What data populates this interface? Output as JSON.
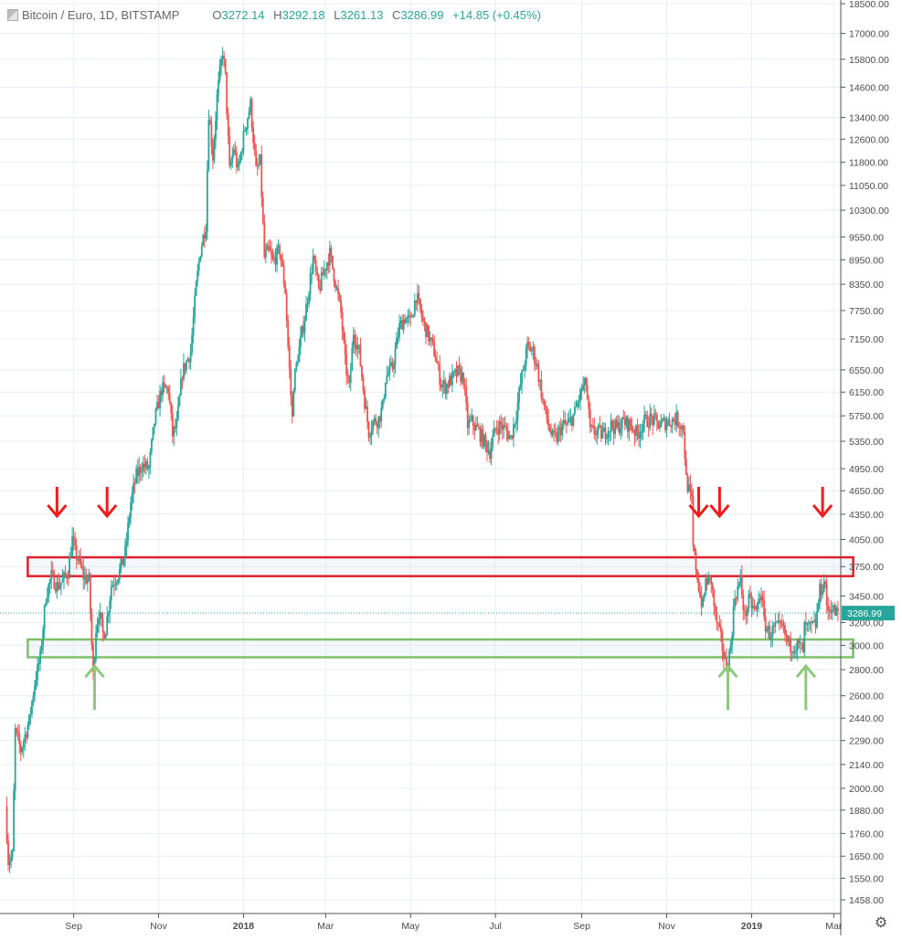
{
  "header": {
    "title": "Bitcoin / Euro, 1D, BITSTAMP",
    "open_label": "O",
    "open": "3272.14",
    "high_label": "H",
    "high": "3292.18",
    "low_label": "L",
    "low": "3261.13",
    "close_label": "C",
    "close": "3286.99",
    "change": "+14.85 (+0.45%)"
  },
  "last_price_label": "3286.99",
  "colors": {
    "up": "#26a69a",
    "down": "#ef5350",
    "grid": "#e8eef3",
    "resistance": "#e0212b",
    "support": "#7fbf6a",
    "axis_text": "#4a4a4a",
    "last_price": "#26a69a"
  },
  "chart_data": {
    "type": "candlestick",
    "title": "Bitcoin / Euro, 1D, BITSTAMP",
    "xlabel": "",
    "ylabel": "",
    "y_scale": "log",
    "y_ticks": [
      18500,
      17000,
      15800,
      14600,
      13400,
      12600,
      11800,
      11050,
      10300,
      9550,
      8950,
      8350,
      7750,
      7150,
      6550,
      6150,
      5750,
      5350,
      4950,
      4650,
      4350,
      4050,
      3750,
      3450,
      3200,
      3000,
      2800,
      2600,
      2440,
      2290,
      2140,
      2000,
      1880,
      1760,
      1650,
      1550,
      1458
    ],
    "y_tick_labels": [
      "18500.00",
      "17000.00",
      "15800.00",
      "14600.00",
      "13400.00",
      "12600.00",
      "11800.00",
      "11050.00",
      "10300.00",
      "9550.00",
      "8950.00",
      "8350.00",
      "7750.00",
      "7150.00",
      "6550.00",
      "6150.00",
      "5750.00",
      "5350.00",
      "4950.00",
      "4650.00",
      "4350.00",
      "4050.00",
      "3750.00",
      "3450.00",
      "3200.00",
      "3000.00",
      "2800.00",
      "2600.00",
      "2440.00",
      "2290.00",
      "2140.00",
      "2000.00",
      "1880.00",
      "1760.00",
      "1650.00",
      "1550.00",
      "1458.00"
    ],
    "x_range": [
      "2017-07-14",
      "2019-03-10"
    ],
    "x_ticks": [
      {
        "date": "2017-09-01",
        "label": "Sep",
        "bold": false
      },
      {
        "date": "2017-11-01",
        "label": "Nov",
        "bold": false
      },
      {
        "date": "2018-01-01",
        "label": "2018",
        "bold": true
      },
      {
        "date": "2018-03-01",
        "label": "Mar",
        "bold": false
      },
      {
        "date": "2018-05-01",
        "label": "May",
        "bold": false
      },
      {
        "date": "2018-07-01",
        "label": "Jul",
        "bold": false
      },
      {
        "date": "2018-09-01",
        "label": "Sep",
        "bold": false
      },
      {
        "date": "2018-11-01",
        "label": "Nov",
        "bold": false
      },
      {
        "date": "2019-01-01",
        "label": "2019",
        "bold": true
      },
      {
        "date": "2019-03-01",
        "label": "Mar",
        "bold": false
      }
    ],
    "price_path": [
      [
        "2017-07-14",
        1900
      ],
      [
        "2017-07-16",
        1630
      ],
      [
        "2017-07-19",
        1650
      ],
      [
        "2017-07-21",
        2350
      ],
      [
        "2017-07-25",
        2230
      ],
      [
        "2017-07-31",
        2420
      ],
      [
        "2017-08-04",
        2700
      ],
      [
        "2017-08-08",
        2900
      ],
      [
        "2017-08-12",
        3450
      ],
      [
        "2017-08-16",
        3650
      ],
      [
        "2017-08-20",
        3550
      ],
      [
        "2017-08-24",
        3600
      ],
      [
        "2017-08-28",
        3700
      ],
      [
        "2017-08-31",
        4050
      ],
      [
        "2017-09-02",
        3900
      ],
      [
        "2017-09-05",
        3800
      ],
      [
        "2017-09-08",
        3650
      ],
      [
        "2017-09-12",
        3600
      ],
      [
        "2017-09-14",
        3000
      ],
      [
        "2017-09-15",
        2750
      ],
      [
        "2017-09-17",
        3150
      ],
      [
        "2017-09-19",
        3300
      ],
      [
        "2017-09-22",
        3100
      ],
      [
        "2017-09-24",
        3150
      ],
      [
        "2017-09-28",
        3550
      ],
      [
        "2017-10-04",
        3700
      ],
      [
        "2017-10-08",
        3900
      ],
      [
        "2017-10-12",
        4500
      ],
      [
        "2017-10-16",
        4850
      ],
      [
        "2017-10-20",
        5000
      ],
      [
        "2017-10-25",
        4950
      ],
      [
        "2017-10-29",
        5650
      ],
      [
        "2017-11-03",
        6200
      ],
      [
        "2017-11-08",
        6200
      ],
      [
        "2017-11-11",
        5450
      ],
      [
        "2017-11-14",
        5600
      ],
      [
        "2017-11-18",
        6500
      ],
      [
        "2017-11-24",
        6900
      ],
      [
        "2017-11-28",
        8300
      ],
      [
        "2017-12-01",
        9200
      ],
      [
        "2017-12-05",
        9900
      ],
      [
        "2017-12-07",
        13600
      ],
      [
        "2017-12-10",
        12000
      ],
      [
        "2017-12-13",
        14200
      ],
      [
        "2017-12-17",
        16200
      ],
      [
        "2017-12-19",
        15000
      ],
      [
        "2017-12-22",
        11500
      ],
      [
        "2017-12-25",
        12300
      ],
      [
        "2017-12-28",
        11500
      ],
      [
        "2018-01-02",
        13000
      ],
      [
        "2018-01-06",
        13900
      ],
      [
        "2018-01-10",
        11500
      ],
      [
        "2018-01-13",
        11800
      ],
      [
        "2018-01-16",
        9000
      ],
      [
        "2018-01-19",
        9200
      ],
      [
        "2018-01-22",
        8900
      ],
      [
        "2018-01-27",
        9200
      ],
      [
        "2018-01-31",
        8200
      ],
      [
        "2018-02-02",
        7000
      ],
      [
        "2018-02-05",
        5700
      ],
      [
        "2018-02-06",
        6300
      ],
      [
        "2018-02-09",
        6800
      ],
      [
        "2018-02-14",
        7600
      ],
      [
        "2018-02-20",
        9000
      ],
      [
        "2018-02-24",
        8200
      ],
      [
        "2018-02-28",
        8700
      ],
      [
        "2018-03-04",
        9100
      ],
      [
        "2018-03-08",
        8400
      ],
      [
        "2018-03-12",
        7700
      ],
      [
        "2018-03-15",
        6700
      ],
      [
        "2018-03-18",
        6200
      ],
      [
        "2018-03-21",
        7300
      ],
      [
        "2018-03-25",
        6900
      ],
      [
        "2018-03-29",
        6000
      ],
      [
        "2018-04-01",
        5500
      ],
      [
        "2018-04-04",
        5650
      ],
      [
        "2018-04-08",
        5700
      ],
      [
        "2018-04-11",
        5900
      ],
      [
        "2018-04-13",
        6400
      ],
      [
        "2018-04-18",
        6600
      ],
      [
        "2018-04-23",
        7400
      ],
      [
        "2018-04-27",
        7600
      ],
      [
        "2018-05-01",
        7500
      ],
      [
        "2018-05-05",
        8100
      ],
      [
        "2018-05-10",
        7500
      ],
      [
        "2018-05-14",
        7200
      ],
      [
        "2018-05-18",
        6900
      ],
      [
        "2018-05-23",
        6300
      ],
      [
        "2018-05-26",
        6250
      ],
      [
        "2018-05-31",
        6400
      ],
      [
        "2018-06-04",
        6500
      ],
      [
        "2018-06-08",
        6400
      ],
      [
        "2018-06-11",
        5600
      ],
      [
        "2018-06-14",
        5650
      ],
      [
        "2018-06-19",
        5500
      ],
      [
        "2018-06-24",
        5300
      ],
      [
        "2018-06-27",
        5200
      ],
      [
        "2018-07-01",
        5550
      ],
      [
        "2018-07-05",
        5600
      ],
      [
        "2018-07-09",
        5500
      ],
      [
        "2018-07-12",
        5400
      ],
      [
        "2018-07-16",
        5800
      ],
      [
        "2018-07-19",
        6300
      ],
      [
        "2018-07-24",
        7000
      ],
      [
        "2018-07-28",
        6900
      ],
      [
        "2018-07-31",
        6600
      ],
      [
        "2018-08-04",
        6000
      ],
      [
        "2018-08-08",
        5600
      ],
      [
        "2018-08-11",
        5400
      ],
      [
        "2018-08-14",
        5400
      ],
      [
        "2018-08-18",
        5600
      ],
      [
        "2018-08-22",
        5600
      ],
      [
        "2018-08-27",
        5800
      ],
      [
        "2018-09-01",
        6200
      ],
      [
        "2018-09-04",
        6300
      ],
      [
        "2018-09-07",
        5500
      ],
      [
        "2018-09-12",
        5500
      ],
      [
        "2018-09-16",
        5450
      ],
      [
        "2018-09-22",
        5600
      ],
      [
        "2018-09-26",
        5550
      ],
      [
        "2018-10-01",
        5650
      ],
      [
        "2018-10-06",
        5600
      ],
      [
        "2018-10-11",
        5450
      ],
      [
        "2018-10-15",
        5650
      ],
      [
        "2018-10-21",
        5700
      ],
      [
        "2018-10-27",
        5600
      ],
      [
        "2018-11-01",
        5650
      ],
      [
        "2018-11-08",
        5700
      ],
      [
        "2018-11-13",
        5550
      ],
      [
        "2018-11-15",
        4800
      ],
      [
        "2018-11-19",
        4500
      ],
      [
        "2018-11-20",
        3950
      ],
      [
        "2018-11-22",
        3750
      ],
      [
        "2018-11-25",
        3450
      ],
      [
        "2018-11-27",
        3350
      ],
      [
        "2018-11-29",
        3600
      ],
      [
        "2018-12-03",
        3600
      ],
      [
        "2018-12-06",
        3250
      ],
      [
        "2018-12-10",
        3050
      ],
      [
        "2018-12-13",
        2850
      ],
      [
        "2018-12-15",
        2850
      ],
      [
        "2018-12-17",
        3000
      ],
      [
        "2018-12-19",
        3300
      ],
      [
        "2018-12-20",
        3450
      ],
      [
        "2018-12-24",
        3600
      ],
      [
        "2018-12-27",
        3250
      ],
      [
        "2018-12-30",
        3400
      ],
      [
        "2019-01-04",
        3300
      ],
      [
        "2019-01-08",
        3500
      ],
      [
        "2019-01-10",
        3200
      ],
      [
        "2019-01-14",
        3100
      ],
      [
        "2019-01-18",
        3150
      ],
      [
        "2019-01-23",
        3150
      ],
      [
        "2019-01-28",
        3000
      ],
      [
        "2019-02-01",
        3000
      ],
      [
        "2019-02-05",
        2990
      ],
      [
        "2019-02-07",
        2950
      ],
      [
        "2019-02-08",
        3150
      ],
      [
        "2019-02-12",
        3150
      ],
      [
        "2019-02-16",
        3180
      ],
      [
        "2019-02-19",
        3500
      ],
      [
        "2019-02-23",
        3600
      ],
      [
        "2019-02-24",
        3300
      ],
      [
        "2019-02-27",
        3350
      ],
      [
        "2019-03-02",
        3290
      ],
      [
        "2019-03-04",
        3287
      ]
    ],
    "resistance_zone": {
      "x_start": "2017-07-30",
      "x_end": "2019-03-15",
      "y_low": 3650,
      "y_high": 3850,
      "label": ""
    },
    "support_zone": {
      "x_start": "2017-07-30",
      "x_end": "2019-03-15",
      "y_low": 2900,
      "y_high": 3050,
      "label": ""
    },
    "down_arrows": [
      {
        "date": "2017-08-20",
        "price": 4350
      },
      {
        "date": "2017-09-25",
        "price": 4350
      },
      {
        "date": "2018-11-24",
        "price": 4350
      },
      {
        "date": "2018-12-09",
        "price": 4350
      },
      {
        "date": "2019-02-21",
        "price": 4350
      }
    ],
    "up_arrows": [
      {
        "date": "2017-09-16",
        "price": 2550
      },
      {
        "date": "2018-12-15",
        "price": 2550
      },
      {
        "date": "2019-02-09",
        "price": 2550
      }
    ],
    "last_price": 3286.99
  }
}
